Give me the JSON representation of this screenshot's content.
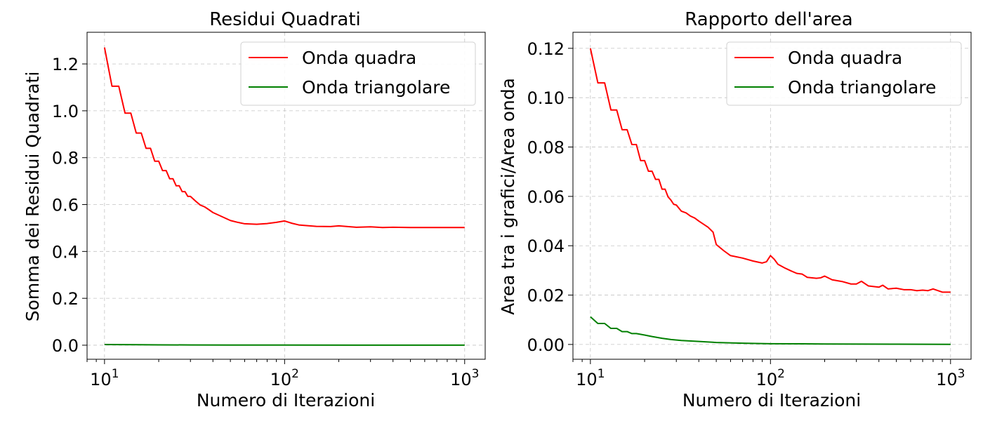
{
  "chart_data": [
    {
      "type": "line",
      "title": "Residui Quadrati",
      "xlabel": "Numero di Iterazioni",
      "ylabel": "Somma dei Residui Quadrati",
      "xscale": "log",
      "xlim": [
        8,
        1300
      ],
      "ylim": [
        -0.06,
        1.335
      ],
      "xticks": [
        10,
        100,
        1000
      ],
      "xtick_labels": [
        {
          "base": "10",
          "exp": "1"
        },
        {
          "base": "10",
          "exp": "2"
        },
        {
          "base": "10",
          "exp": "3"
        }
      ],
      "yticks": [
        0.0,
        0.2,
        0.4,
        0.6,
        0.8,
        1.0,
        1.2
      ],
      "ytick_labels": [
        "0.0",
        "0.2",
        "0.4",
        "0.6",
        "0.8",
        "1.0",
        "1.2"
      ],
      "grid": true,
      "legend_position": "top-right",
      "series": [
        {
          "name": "Onda quadra",
          "color": "#ff0000",
          "x": [
            10,
            11,
            12,
            13,
            14,
            15,
            16,
            17,
            18,
            19,
            20,
            21,
            22,
            23,
            24,
            25,
            26,
            27,
            28,
            29,
            30,
            32,
            34,
            36,
            38,
            40,
            45,
            50,
            55,
            60,
            70,
            80,
            90,
            100,
            110,
            120,
            150,
            180,
            200,
            250,
            300,
            350,
            400,
            500,
            600,
            700,
            800,
            1000
          ],
          "y": [
            1.27,
            1.105,
            1.105,
            0.99,
            0.99,
            0.905,
            0.905,
            0.84,
            0.84,
            0.785,
            0.785,
            0.745,
            0.745,
            0.71,
            0.71,
            0.68,
            0.68,
            0.655,
            0.655,
            0.635,
            0.635,
            0.615,
            0.598,
            0.59,
            0.578,
            0.566,
            0.548,
            0.532,
            0.524,
            0.518,
            0.516,
            0.519,
            0.524,
            0.53,
            0.52,
            0.513,
            0.507,
            0.506,
            0.509,
            0.503,
            0.505,
            0.502,
            0.503,
            0.502,
            0.502,
            0.502,
            0.502,
            0.502
          ]
        },
        {
          "name": "Onda triangolare",
          "color": "#008000",
          "x": [
            10,
            12,
            15,
            20,
            30,
            50,
            100,
            1000
          ],
          "y": [
            0.003,
            0.0025,
            0.002,
            0.0015,
            0.001,
            0.0008,
            0.0005,
            0.0003
          ]
        }
      ]
    },
    {
      "type": "line",
      "title": "Rapporto dell'area",
      "xlabel": "Numero di Iterazioni",
      "ylabel": "Area tra i grafici/Area onda",
      "xscale": "log",
      "xlim": [
        8,
        1300
      ],
      "ylim": [
        -0.006,
        0.1265
      ],
      "xticks": [
        10,
        100,
        1000
      ],
      "xtick_labels": [
        {
          "base": "10",
          "exp": "1"
        },
        {
          "base": "10",
          "exp": "2"
        },
        {
          "base": "10",
          "exp": "3"
        }
      ],
      "yticks": [
        0.0,
        0.02,
        0.04,
        0.06,
        0.08,
        0.1,
        0.12
      ],
      "ytick_labels": [
        "0.00",
        "0.02",
        "0.04",
        "0.06",
        "0.08",
        "0.10",
        "0.12"
      ],
      "grid": true,
      "legend_position": "top-right",
      "series": [
        {
          "name": "Onda quadra",
          "color": "#ff0000",
          "x": [
            10,
            11,
            12,
            13,
            14,
            15,
            16,
            17,
            18,
            19,
            20,
            21,
            22,
            23,
            24,
            25,
            26,
            27,
            28,
            29,
            30,
            32,
            34,
            36,
            38,
            40,
            45,
            48,
            50,
            55,
            60,
            70,
            80,
            90,
            95,
            100,
            105,
            110,
            120,
            130,
            140,
            150,
            160,
            180,
            190,
            200,
            220,
            250,
            280,
            300,
            320,
            350,
            400,
            420,
            450,
            500,
            550,
            600,
            650,
            700,
            750,
            800,
            900,
            1000
          ],
          "y": [
            0.12,
            0.106,
            0.106,
            0.095,
            0.095,
            0.087,
            0.087,
            0.081,
            0.081,
            0.0745,
            0.0745,
            0.0702,
            0.0702,
            0.0669,
            0.0669,
            0.0629,
            0.0629,
            0.0598,
            0.0585,
            0.0568,
            0.0565,
            0.054,
            0.0533,
            0.052,
            0.0512,
            0.05,
            0.0475,
            0.0455,
            0.0405,
            0.038,
            0.036,
            0.035,
            0.0338,
            0.033,
            0.0335,
            0.036,
            0.0345,
            0.0325,
            0.031,
            0.0298,
            0.0288,
            0.0285,
            0.0272,
            0.0268,
            0.027,
            0.0277,
            0.0262,
            0.0255,
            0.0245,
            0.0245,
            0.0256,
            0.0237,
            0.0232,
            0.024,
            0.0225,
            0.0228,
            0.0222,
            0.0222,
            0.0218,
            0.022,
            0.0218,
            0.0225,
            0.0212,
            0.0212
          ]
        },
        {
          "name": "Onda triangolare",
          "color": "#008000",
          "x": [
            10,
            11,
            12,
            13,
            14,
            15,
            16,
            17,
            18,
            20,
            22,
            25,
            28,
            32,
            40,
            50,
            70,
            100,
            200,
            500,
            1000
          ],
          "y": [
            0.0112,
            0.0085,
            0.0085,
            0.0065,
            0.0065,
            0.0052,
            0.0052,
            0.0044,
            0.0044,
            0.0038,
            0.0032,
            0.0025,
            0.002,
            0.0016,
            0.0012,
            0.0008,
            0.0005,
            0.0003,
            0.0002,
            0.0001,
            5e-05
          ]
        }
      ]
    }
  ]
}
